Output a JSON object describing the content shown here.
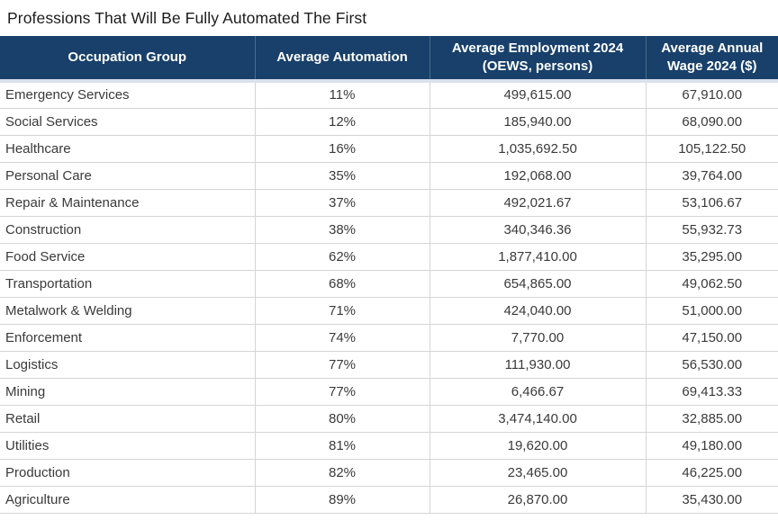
{
  "title": "Professions That Will Be Fully Automated The First",
  "colors": {
    "header_bg": "#18406B",
    "header_text": "#FFFFFF",
    "header_bottom_border": "#D9E1EC",
    "row_divider": "#D5D5D5",
    "body_text": "#3A3A3A",
    "title_text": "#1C1C1C",
    "page_bg": "#FFFFFF"
  },
  "chart_data": {
    "type": "table",
    "title": "Professions That Will Be Fully Automated The First",
    "columns": [
      "Occupation Group",
      "Average Automation",
      "Average Employment 2024 (OEWS, persons)",
      "Average Annual Wage 2024 ($)"
    ],
    "rows": [
      {
        "group": "Emergency Services",
        "automation": "11%",
        "employment": "499,615.00",
        "wage": "67,910.00"
      },
      {
        "group": "Social Services",
        "automation": "12%",
        "employment": "185,940.00",
        "wage": "68,090.00"
      },
      {
        "group": "Healthcare",
        "automation": "16%",
        "employment": "1,035,692.50",
        "wage": "105,122.50"
      },
      {
        "group": "Personal Care",
        "automation": "35%",
        "employment": "192,068.00",
        "wage": "39,764.00"
      },
      {
        "group": "Repair & Maintenance",
        "automation": "37%",
        "employment": "492,021.67",
        "wage": "53,106.67"
      },
      {
        "group": "Construction",
        "automation": "38%",
        "employment": "340,346.36",
        "wage": "55,932.73"
      },
      {
        "group": "Food Service",
        "automation": "62%",
        "employment": "1,877,410.00",
        "wage": "35,295.00"
      },
      {
        "group": "Transportation",
        "automation": "68%",
        "employment": "654,865.00",
        "wage": "49,062.50"
      },
      {
        "group": "Metalwork & Welding",
        "automation": "71%",
        "employment": "424,040.00",
        "wage": "51,000.00"
      },
      {
        "group": "Enforcement",
        "automation": "74%",
        "employment": "7,770.00",
        "wage": "47,150.00"
      },
      {
        "group": "Logistics",
        "automation": "77%",
        "employment": "111,930.00",
        "wage": "56,530.00"
      },
      {
        "group": "Mining",
        "automation": "77%",
        "employment": "6,466.67",
        "wage": "69,413.33"
      },
      {
        "group": "Retail",
        "automation": "80%",
        "employment": "3,474,140.00",
        "wage": "32,885.00"
      },
      {
        "group": "Utilities",
        "automation": "81%",
        "employment": "19,620.00",
        "wage": "49,180.00"
      },
      {
        "group": "Production",
        "automation": "82%",
        "employment": "23,465.00",
        "wage": "46,225.00"
      },
      {
        "group": "Agriculture",
        "automation": "89%",
        "employment": "26,870.00",
        "wage": "35,430.00"
      }
    ]
  }
}
